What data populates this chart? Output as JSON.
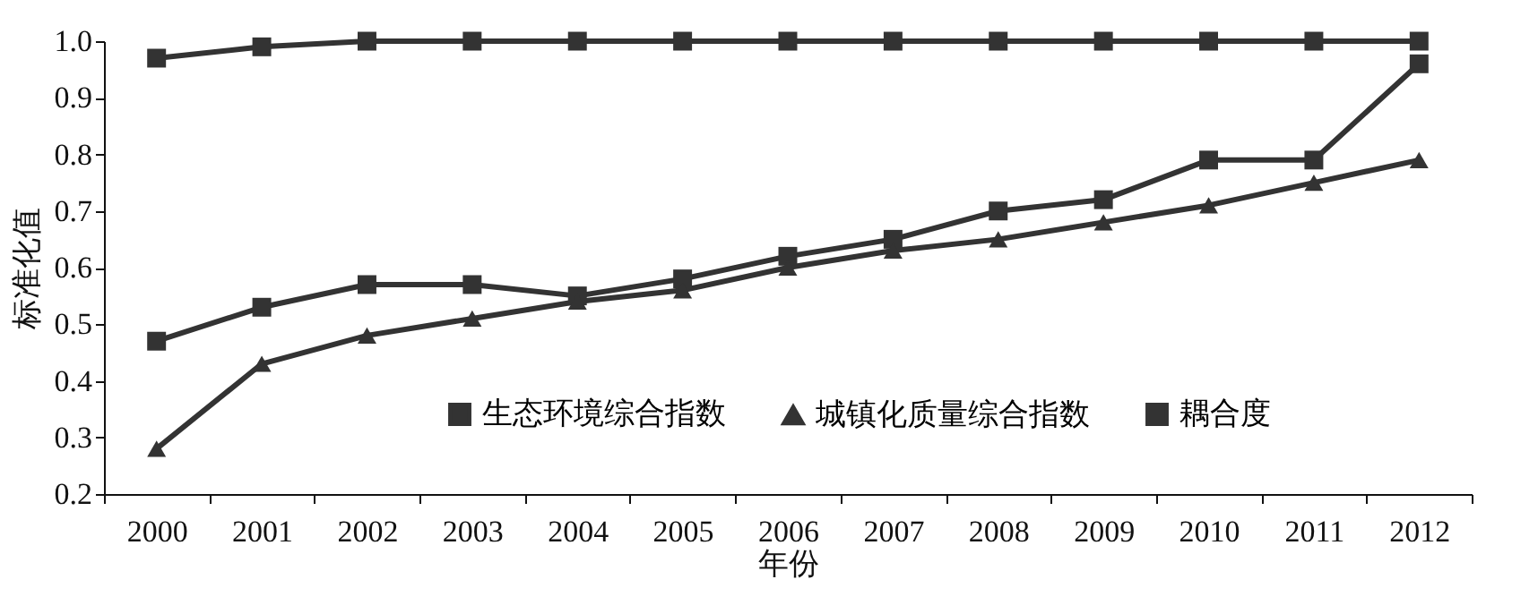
{
  "chart_data": {
    "type": "line",
    "xlabel": "年份",
    "ylabel": "标准化值",
    "categories": [
      "2000",
      "2001",
      "2002",
      "2003",
      "2004",
      "2005",
      "2006",
      "2007",
      "2008",
      "2009",
      "2010",
      "2011",
      "2012"
    ],
    "series": [
      {
        "name": "生态环境综合指数",
        "color": "#333333",
        "marker": "square",
        "values": [
          0.47,
          0.53,
          0.57,
          0.57,
          0.55,
          0.58,
          0.62,
          0.65,
          0.7,
          0.72,
          0.79,
          0.79,
          0.96
        ]
      },
      {
        "name": "城镇化质量综合指数",
        "color": "#333333",
        "marker": "triangle",
        "values": [
          0.28,
          0.43,
          0.48,
          0.51,
          0.54,
          0.56,
          0.6,
          0.63,
          0.65,
          0.68,
          0.71,
          0.75,
          0.79
        ]
      },
      {
        "name": "耦合度",
        "color": "#333333",
        "marker": "square",
        "values": [
          0.97,
          0.99,
          1.0,
          1.0,
          1.0,
          1.0,
          1.0,
          1.0,
          1.0,
          1.0,
          1.0,
          1.0,
          1.0
        ]
      }
    ],
    "ylim": [
      0.2,
      1.0
    ],
    "yticks": [
      {
        "value": 0.2,
        "label": "0.2"
      },
      {
        "value": 0.3,
        "label": "0.3"
      },
      {
        "value": 0.4,
        "label": "0.4"
      },
      {
        "value": 0.5,
        "label": "0.5"
      },
      {
        "value": 0.6,
        "label": "0.6"
      },
      {
        "value": 0.7,
        "label": "0.7"
      },
      {
        "value": 0.8,
        "label": "0.8"
      },
      {
        "value": 0.9,
        "label": "0.9"
      },
      {
        "value": 1.0,
        "label": "1.0"
      }
    ],
    "grid": false,
    "legend": "bottom",
    "line_style": "solid"
  }
}
